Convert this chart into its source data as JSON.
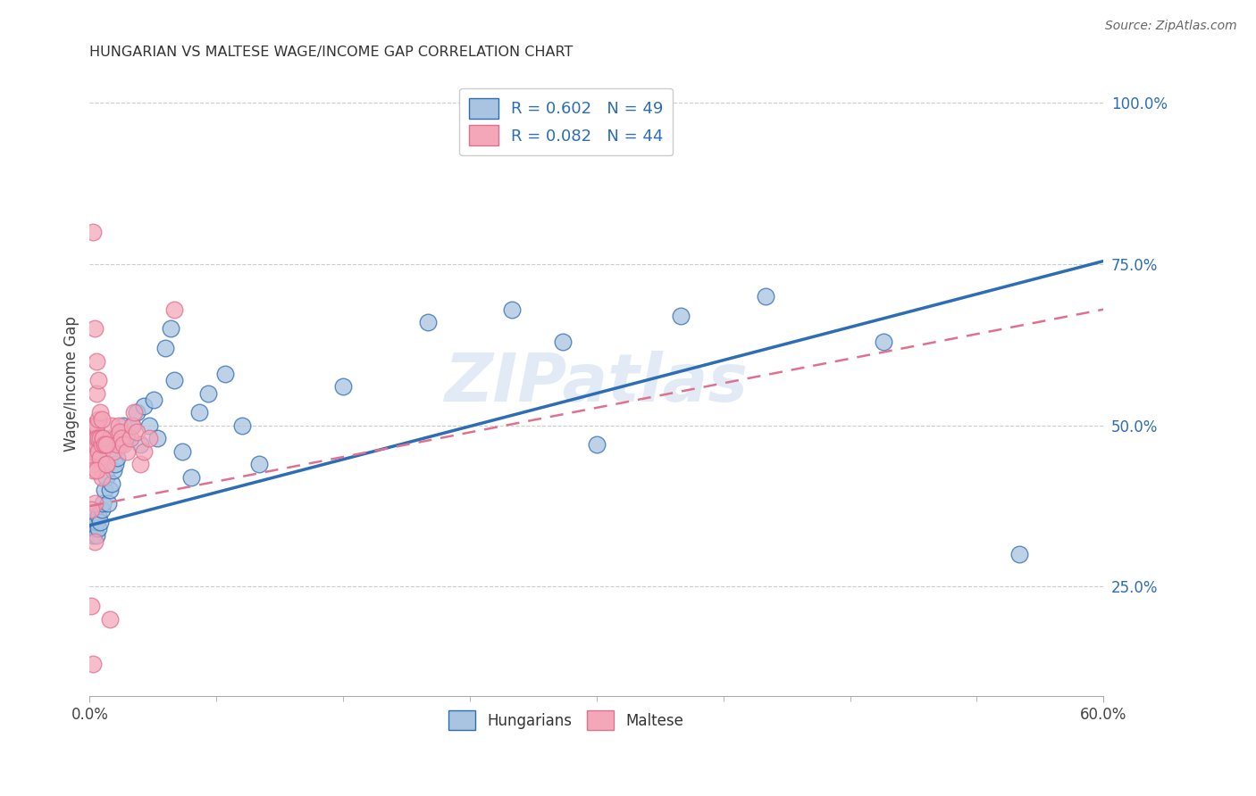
{
  "title": "HUNGARIAN VS MALTESE WAGE/INCOME GAP CORRELATION CHART",
  "source": "Source: ZipAtlas.com",
  "ylabel": "Wage/Income Gap",
  "y_ticks": [
    0.25,
    0.5,
    0.75,
    1.0
  ],
  "y_tick_labels": [
    "25.0%",
    "50.0%",
    "75.0%",
    "100.0%"
  ],
  "x_range": [
    0.0,
    0.6
  ],
  "y_range": [
    0.08,
    1.05
  ],
  "legend_R_hungarian": "0.602",
  "legend_N_hungarian": "49",
  "legend_R_maltese": "0.082",
  "legend_N_maltese": "44",
  "hungarian_color": "#a8c4e0",
  "maltese_color": "#f4a7b9",
  "hungarian_line_color": "#2d6db5",
  "maltese_line_color": "#e07090",
  "watermark": "ZIPatlas",
  "background_color": "#ffffff",
  "hun_line_x0": 0.0,
  "hun_line_y0": 0.345,
  "hun_line_x1": 0.6,
  "hun_line_y1": 0.755,
  "mal_line_x0": 0.0,
  "mal_line_y0": 0.375,
  "mal_line_x1": 0.6,
  "mal_line_y1": 0.68,
  "hungarian_scatter_x": [
    0.001,
    0.002,
    0.002,
    0.003,
    0.003,
    0.004,
    0.004,
    0.005,
    0.005,
    0.006,
    0.007,
    0.008,
    0.009,
    0.01,
    0.011,
    0.012,
    0.013,
    0.014,
    0.015,
    0.016,
    0.018,
    0.02,
    0.022,
    0.025,
    0.028,
    0.03,
    0.032,
    0.035,
    0.038,
    0.04,
    0.045,
    0.048,
    0.05,
    0.055,
    0.06,
    0.065,
    0.07,
    0.08,
    0.09,
    0.1,
    0.15,
    0.2,
    0.25,
    0.28,
    0.3,
    0.35,
    0.4,
    0.47,
    0.55
  ],
  "hungarian_scatter_y": [
    0.34,
    0.33,
    0.35,
    0.34,
    0.36,
    0.33,
    0.35,
    0.34,
    0.36,
    0.35,
    0.37,
    0.38,
    0.4,
    0.42,
    0.38,
    0.4,
    0.41,
    0.43,
    0.44,
    0.45,
    0.47,
    0.5,
    0.48,
    0.5,
    0.52,
    0.47,
    0.53,
    0.5,
    0.54,
    0.48,
    0.62,
    0.65,
    0.57,
    0.46,
    0.42,
    0.52,
    0.55,
    0.58,
    0.5,
    0.44,
    0.56,
    0.66,
    0.68,
    0.63,
    0.47,
    0.67,
    0.7,
    0.63,
    0.3
  ],
  "maltese_scatter_x": [
    0.001,
    0.001,
    0.001,
    0.002,
    0.002,
    0.002,
    0.002,
    0.003,
    0.003,
    0.003,
    0.004,
    0.004,
    0.004,
    0.005,
    0.005,
    0.006,
    0.006,
    0.007,
    0.007,
    0.008,
    0.009,
    0.01,
    0.011,
    0.012,
    0.013,
    0.014,
    0.015,
    0.016,
    0.017,
    0.018,
    0.019,
    0.02,
    0.022,
    0.024,
    0.025,
    0.026,
    0.028,
    0.03,
    0.032,
    0.035,
    0.003,
    0.004,
    0.012,
    0.05
  ],
  "maltese_scatter_y": [
    0.48,
    0.46,
    0.5,
    0.47,
    0.44,
    0.49,
    0.46,
    0.47,
    0.5,
    0.45,
    0.47,
    0.5,
    0.48,
    0.46,
    0.48,
    0.45,
    0.48,
    0.47,
    0.42,
    0.48,
    0.47,
    0.44,
    0.47,
    0.48,
    0.5,
    0.46,
    0.48,
    0.47,
    0.5,
    0.49,
    0.48,
    0.47,
    0.46,
    0.48,
    0.5,
    0.52,
    0.49,
    0.44,
    0.46,
    0.48,
    0.38,
    0.55,
    0.2,
    0.68
  ],
  "maltese_extra_x": [
    0.001,
    0.002,
    0.005,
    0.006,
    0.007,
    0.008,
    0.004,
    0.009,
    0.01,
    0.01,
    0.003,
    0.002,
    0.003,
    0.004,
    0.005,
    0.001,
    0.002
  ],
  "maltese_extra_y": [
    0.37,
    0.43,
    0.51,
    0.52,
    0.51,
    0.48,
    0.43,
    0.47,
    0.47,
    0.44,
    0.32,
    0.8,
    0.65,
    0.6,
    0.57,
    0.22,
    0.13
  ]
}
